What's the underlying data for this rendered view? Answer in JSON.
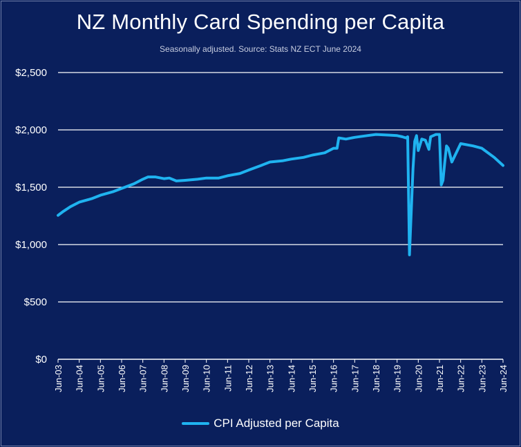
{
  "title": "NZ Monthly Card Spending per Capita",
  "subtitle": "Seasonally adjusted. Source: Stats NZ ECT June 2024",
  "colors": {
    "background": "#0a1f5c",
    "line": "#1fb3f0",
    "grid": "#ffffff",
    "text": "#ffffff"
  },
  "chart_data": {
    "type": "line",
    "title": "NZ Monthly Card Spending per Capita",
    "xlabel": "",
    "ylabel": "",
    "ylim": [
      0,
      2500
    ],
    "y_ticks": [
      "$0",
      "$500",
      "$1,000",
      "$1,500",
      "$2,000",
      "$2,500"
    ],
    "y_tick_values": [
      0,
      500,
      1000,
      1500,
      2000,
      2500
    ],
    "x_ticks": [
      "Jun-03",
      "Jun-04",
      "Jun-05",
      "Jun-06",
      "Jun-07",
      "Jun-08",
      "Jun-09",
      "Jun-10",
      "Jun-11",
      "Jun-12",
      "Jun-13",
      "Jun-14",
      "Jun-15",
      "Jun-16",
      "Jun-17",
      "Jun-18",
      "Jun-19",
      "Jun-20",
      "Jun-21",
      "Jun-22",
      "Jun-23",
      "Jun-24"
    ],
    "grid": "horizontal",
    "legend_position": "bottom",
    "series": [
      {
        "name": "CPI Adjusted per Capita",
        "x": [
          "2003-06",
          "2003-09",
          "2004-01",
          "2004-06",
          "2005-01",
          "2005-06",
          "2006-01",
          "2006-06",
          "2007-01",
          "2007-06",
          "2007-09",
          "2008-01",
          "2008-06",
          "2008-09",
          "2009-01",
          "2009-06",
          "2010-01",
          "2010-06",
          "2011-01",
          "2011-06",
          "2012-01",
          "2012-06",
          "2013-01",
          "2013-06",
          "2014-01",
          "2014-06",
          "2015-01",
          "2015-06",
          "2016-01",
          "2016-06",
          "2016-08",
          "2016-09",
          "2017-01",
          "2017-06",
          "2018-01",
          "2018-06",
          "2019-01",
          "2019-06",
          "2019-09",
          "2019-11",
          "2019-12",
          "2020-01",
          "2020-03",
          "2020-04",
          "2020-05",
          "2020-06",
          "2020-08",
          "2020-10",
          "2020-12",
          "2021-01",
          "2021-04",
          "2021-06",
          "2021-07",
          "2021-08",
          "2021-09",
          "2021-10",
          "2021-11",
          "2022-01",
          "2022-06",
          "2023-01",
          "2023-06",
          "2024-01",
          "2024-06"
        ],
        "values": [
          1255,
          1290,
          1330,
          1370,
          1400,
          1430,
          1460,
          1490,
          1530,
          1570,
          1590,
          1590,
          1575,
          1580,
          1555,
          1560,
          1570,
          1580,
          1580,
          1600,
          1620,
          1650,
          1690,
          1720,
          1730,
          1745,
          1760,
          1780,
          1800,
          1840,
          1840,
          1930,
          1920,
          1935,
          1950,
          1960,
          1955,
          1950,
          1940,
          1930,
          1940,
          910,
          1660,
          1900,
          1950,
          1820,
          1920,
          1910,
          1830,
          1940,
          1960,
          1960,
          1520,
          1560,
          1720,
          1860,
          1840,
          1720,
          1880,
          1860,
          1840,
          1760,
          1690
        ]
      }
    ]
  },
  "legend_label": "CPI Adjusted per Capita"
}
